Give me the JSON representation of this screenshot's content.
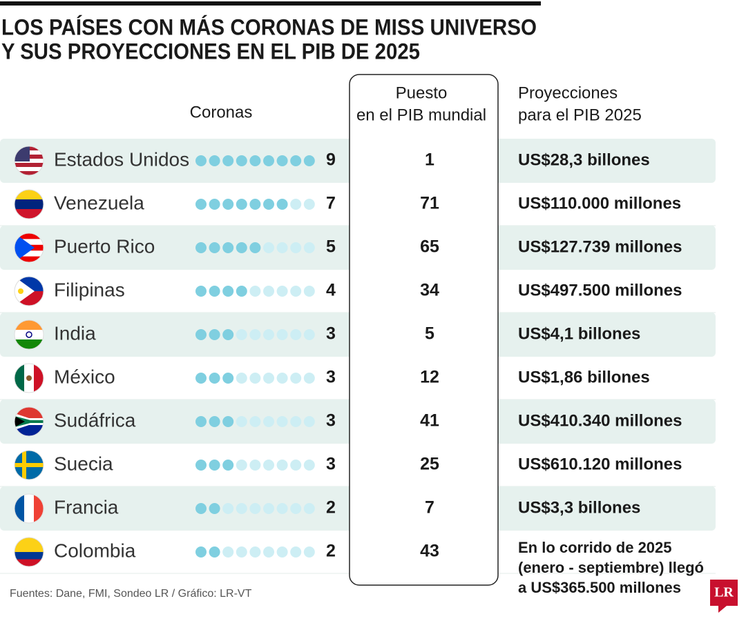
{
  "title_lines": [
    "LOS PAÍSES CON MÁS CORONAS DE MISS UNIVERSO",
    "Y SUS PROYECCIONES EN EL PIB DE 2025"
  ],
  "headers": {
    "crowns": "Coronas",
    "rank_lines": [
      "Puesto",
      "en el PIB mundial"
    ],
    "gdp_lines": [
      "Proyecciones",
      "para el PIB 2025"
    ]
  },
  "rows": [
    {
      "country": "Estados Unidos",
      "crowns": 9,
      "rank": 1,
      "gdp_lines": [
        "US$28,3 billones"
      ]
    },
    {
      "country": "Venezuela",
      "crowns": 7,
      "rank": 71,
      "gdp_lines": [
        "US$110.000 millones"
      ]
    },
    {
      "country": "Puerto Rico",
      "crowns": 5,
      "rank": 65,
      "gdp_lines": [
        "US$127.739 millones"
      ]
    },
    {
      "country": "Filipinas",
      "crowns": 4,
      "rank": 34,
      "gdp_lines": [
        "US$497.500 millones"
      ]
    },
    {
      "country": "India",
      "crowns": 3,
      "rank": 5,
      "gdp_lines": [
        "US$4,1 billones"
      ]
    },
    {
      "country": "México",
      "crowns": 3,
      "rank": 12,
      "gdp_lines": [
        "US$1,86 billones"
      ]
    },
    {
      "country": "Sudáfrica",
      "crowns": 3,
      "rank": 41,
      "gdp_lines": [
        "US$410.340 millones"
      ]
    },
    {
      "country": "Suecia",
      "crowns": 3,
      "rank": 25,
      "gdp_lines": [
        "US$610.120 millones"
      ]
    },
    {
      "country": "Francia",
      "crowns": 2,
      "rank": 7,
      "gdp_lines": [
        "US$3,3 billones"
      ]
    },
    {
      "country": "Colombia",
      "crowns": 2,
      "rank": 43,
      "gdp_lines": [
        "En lo corrido de 2025",
        "(enero - septiembre) llegó",
        "a US$365.500 millones"
      ]
    }
  ],
  "source": "Fuentes: Dane, FMI, Sondeo LR / Gráfico: LR-VT",
  "logo": "LR"
}
